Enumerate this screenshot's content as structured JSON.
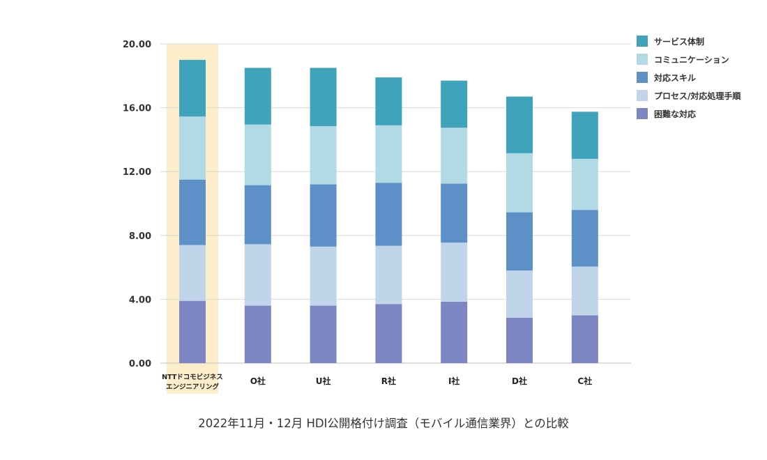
{
  "caption": "2022年11月・12月 HDI公開格付け調査（モバイル通信業界）との比較",
  "chart_data": {
    "type": "bar",
    "stacked": true,
    "title": "",
    "xlabel": "",
    "ylabel": "",
    "ylim": [
      0,
      20
    ],
    "yticks": [
      "0.00",
      "4.00",
      "8.00",
      "12.00",
      "16.00",
      "20.00"
    ],
    "grid": true,
    "legend_position": "top-right",
    "categories": [
      [
        "NTTドコモビジネス",
        "エンジニアリング"
      ],
      "O社",
      "U社",
      "R社",
      "I社",
      "D社",
      "C社"
    ],
    "highlight_category_index": 0,
    "highlight_color": "#fdeecb",
    "series": [
      {
        "name": "困難な対応",
        "color": "#7b86c2",
        "values": [
          3.9,
          3.6,
          3.6,
          3.7,
          3.85,
          2.85,
          3.0
        ]
      },
      {
        "name": "プロセス/対応処理手順",
        "color": "#c0d5ea",
        "values": [
          3.5,
          3.85,
          3.7,
          3.65,
          3.7,
          2.95,
          3.05
        ]
      },
      {
        "name": "対応スキル",
        "color": "#5d90c7",
        "values": [
          4.1,
          3.7,
          3.9,
          3.95,
          3.7,
          3.65,
          3.55
        ]
      },
      {
        "name": "コミュニケーション",
        "color": "#b2dae4",
        "values": [
          3.95,
          3.8,
          3.65,
          3.6,
          3.5,
          3.7,
          3.2
        ]
      },
      {
        "name": "サービス体制",
        "color": "#3fa3bc",
        "values": [
          3.55,
          3.55,
          3.65,
          3.0,
          2.95,
          3.55,
          2.95
        ]
      }
    ],
    "legend_order": [
      "サービス体制",
      "コミュニケーション",
      "対応スキル",
      "プロセス/対応処理手順",
      "困難な対応"
    ]
  }
}
